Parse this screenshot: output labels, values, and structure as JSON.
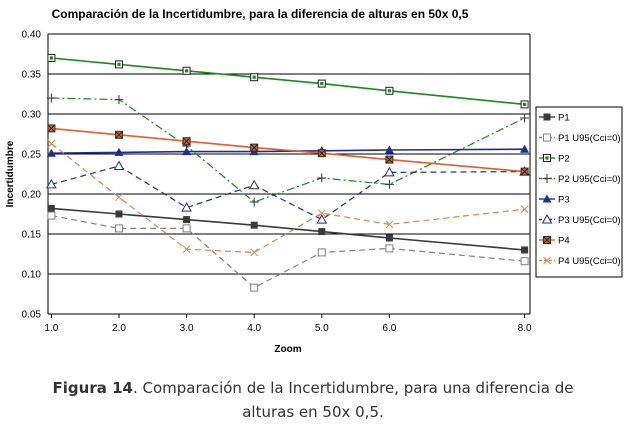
{
  "chart_data": {
    "type": "line",
    "title": "Comparación de la Incertidumbre, para la diferencia de alturas en 50x 0,5",
    "xlabel": "Zoom",
    "ylabel": "Incertidumbre",
    "x": [
      1.0,
      2.0,
      3.0,
      4.0,
      5.0,
      6.0,
      8.0
    ],
    "x_tick_labels": [
      "1.0",
      "2.0",
      "3.0",
      "4.0",
      "5.0",
      "6.0",
      "8.0"
    ],
    "y_ticks": [
      "0.05",
      "0.10",
      "0.15",
      "0.20",
      "0.25",
      "0.30",
      "0.35",
      "0.40"
    ],
    "ylim": [
      0.05,
      0.4
    ],
    "grid": "horizontal",
    "legend_position": "right",
    "series": [
      {
        "name": "P1",
        "color": "#3a3a3a",
        "dash": "solid",
        "marker": "square-filled",
        "values": [
          0.182,
          0.175,
          0.168,
          0.161,
          0.153,
          0.145,
          0.13
        ]
      },
      {
        "name": "P1 U95(Cci=0)",
        "color": "#808080",
        "dash": "dash",
        "marker": "square-open",
        "values": [
          0.173,
          0.157,
          0.157,
          0.083,
          0.127,
          0.132,
          0.116
        ]
      },
      {
        "name": "P2",
        "color": "#1a8a1a",
        "dash": "solid",
        "marker": "square-dot",
        "values": [
          0.37,
          0.362,
          0.354,
          0.346,
          0.338,
          0.329,
          0.312
        ]
      },
      {
        "name": "P2 U95(Cci=0)",
        "color": "#1a8a1a",
        "dash": "dashdot",
        "marker": "plus",
        "values": [
          0.32,
          0.318,
          0.26,
          0.19,
          0.22,
          0.212,
          0.295
        ]
      },
      {
        "name": "P3",
        "color": "#1f2f8a",
        "dash": "solid",
        "marker": "triangle-filled",
        "values": [
          0.251,
          0.252,
          0.253,
          0.253,
          0.254,
          0.255,
          0.256
        ]
      },
      {
        "name": "P3 U95(Cci=0)",
        "color": "#1f2f8a",
        "dash": "dash",
        "marker": "triangle-open",
        "values": [
          0.212,
          0.235,
          0.183,
          0.211,
          0.168,
          0.227,
          0.228
        ]
      },
      {
        "name": "P4",
        "color": "#d9612b",
        "dash": "solid",
        "marker": "square-x",
        "values": [
          0.282,
          0.274,
          0.266,
          0.258,
          0.251,
          0.243,
          0.228
        ]
      },
      {
        "name": "P4 U95(Cci=0)",
        "color": "#e67e45",
        "dash": "dash",
        "marker": "x",
        "values": [
          0.263,
          0.196,
          0.131,
          0.127,
          0.176,
          0.162,
          0.181
        ]
      }
    ]
  },
  "caption": {
    "figure_label": "Figura 14",
    "text_line1": ". Comparación de la Incertidumbre, para una diferencia de",
    "text_line2": "alturas en 50x 0,5."
  }
}
